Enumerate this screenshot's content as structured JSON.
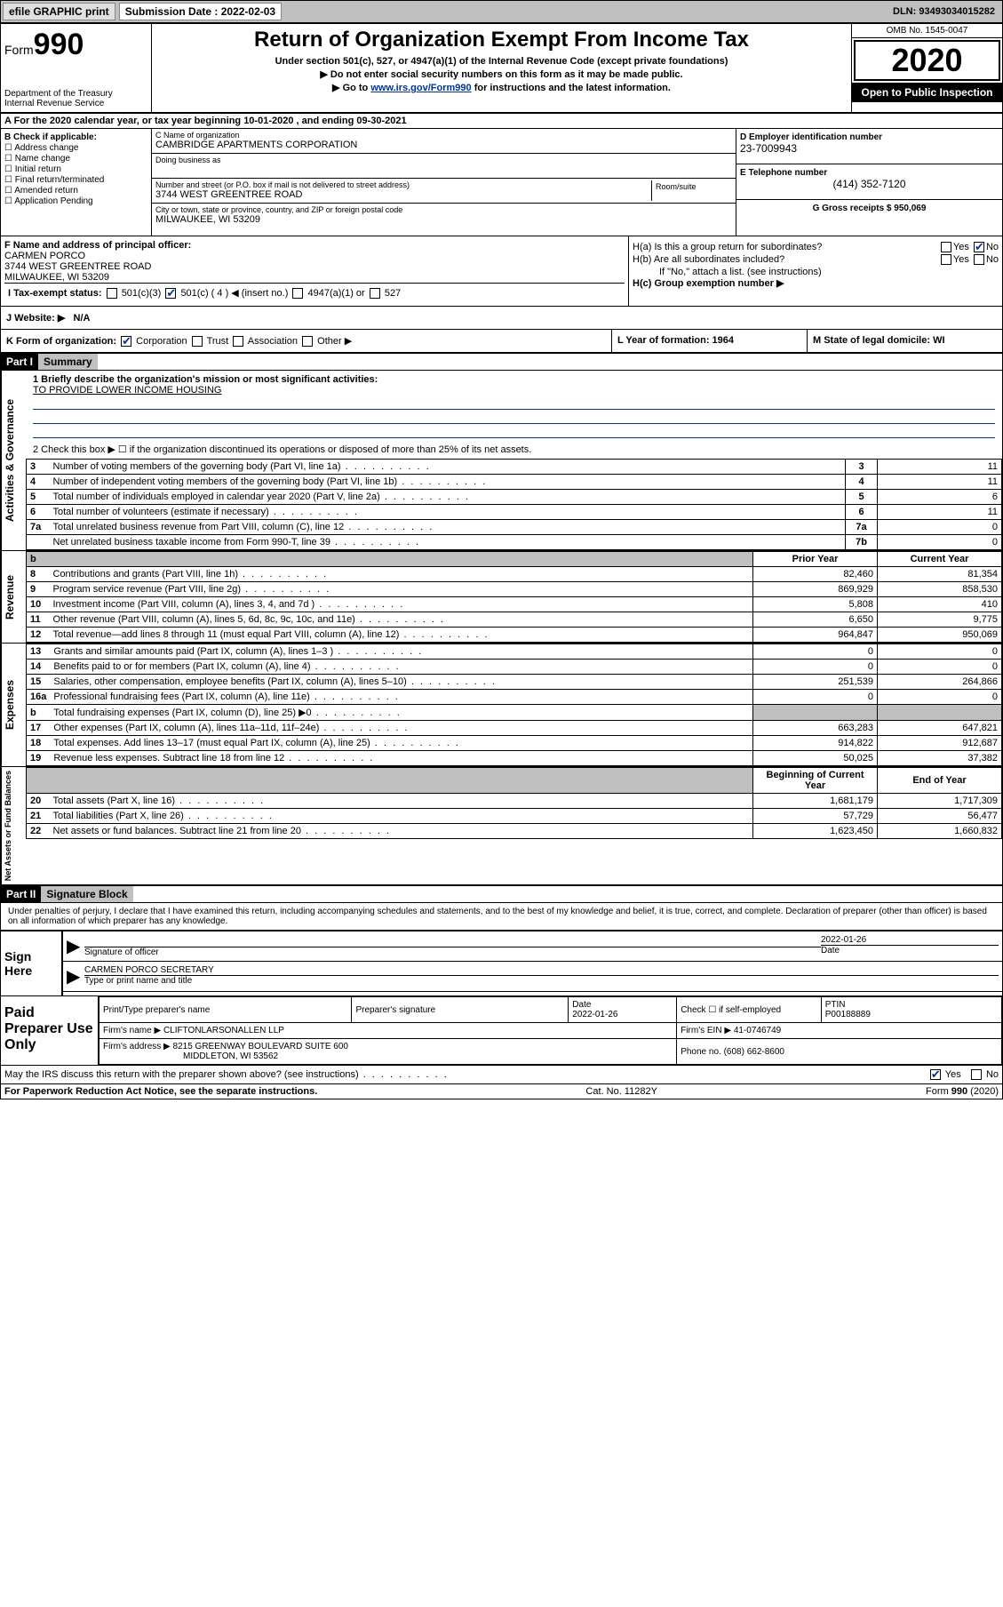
{
  "topbar": {
    "efile": "efile GRAPHIC print",
    "submission_label": "Submission Date : 2022-02-03",
    "dln": "DLN: 93493034015282"
  },
  "header": {
    "form_word": "Form",
    "form_num": "990",
    "dept": "Department of the Treasury",
    "irs": "Internal Revenue Service",
    "title": "Return of Organization Exempt From Income Tax",
    "sub1": "Under section 501(c), 527, or 4947(a)(1) of the Internal Revenue Code (except private foundations)",
    "sub2": "▶ Do not enter social security numbers on this form as it may be made public.",
    "sub3_pre": "▶ Go to ",
    "sub3_link": "www.irs.gov/Form990",
    "sub3_post": " for instructions and the latest information.",
    "omb": "OMB No. 1545-0047",
    "year": "2020",
    "open": "Open to Public Inspection"
  },
  "row_a": "A For the 2020 calendar year, or tax year beginning 10-01-2020    , and ending 09-30-2021",
  "b": {
    "label": "B Check if applicable:",
    "items": [
      "Address change",
      "Name change",
      "Initial return",
      "Final return/terminated",
      "Amended return",
      "Application Pending"
    ]
  },
  "c": {
    "name_label": "C Name of organization",
    "name": "CAMBRIDGE APARTMENTS CORPORATION",
    "dba_label": "Doing business as",
    "dba": "",
    "addr_label": "Number and street (or P.O. box if mail is not delivered to street address)",
    "suite_label": "Room/suite",
    "addr": "3744 WEST GREENTREE ROAD",
    "city_label": "City or town, state or province, country, and ZIP or foreign postal code",
    "city": "MILWAUKEE, WI  53209"
  },
  "d": {
    "ein_label": "D Employer identification number",
    "ein": "23-7009943",
    "tel_label": "E Telephone number",
    "tel": "(414) 352-7120",
    "gross_label": "G Gross receipts $ 950,069"
  },
  "f": {
    "label": "F Name and address of principal officer:",
    "name": "CARMEN PORCO",
    "addr1": "3744 WEST GREENTREE ROAD",
    "addr2": "MILWAUKEE, WI  53209"
  },
  "h": {
    "a": "H(a)  Is this a group return for subordinates?",
    "a_ans_yes": "Yes",
    "a_ans_no": "No",
    "b": "H(b)  Are all subordinates included?",
    "b_note": "If \"No,\" attach a list. (see instructions)",
    "c": "H(c)  Group exemption number ▶"
  },
  "i": {
    "label": "I  Tax-exempt status:",
    "opts": [
      "501(c)(3)",
      "501(c) ( 4 ) ◀ (insert no.)",
      "4947(a)(1) or",
      "527"
    ]
  },
  "j": {
    "label": "J  Website: ▶",
    "val": "N/A"
  },
  "k": {
    "label": "K Form of organization:",
    "opts": [
      "Corporation",
      "Trust",
      "Association",
      "Other ▶"
    ]
  },
  "l": {
    "label": "L Year of formation: 1964"
  },
  "m": {
    "label": "M State of legal domicile: WI"
  },
  "part1": {
    "hdr": "Part I",
    "title": "Summary",
    "q1_label": "1  Briefly describe the organization's mission or most significant activities:",
    "q1_val": "TO PROVIDE LOWER INCOME HOUSING",
    "q2": "2   Check this box ▶ ☐  if the organization discontinued its operations or disposed of more than 25% of its net assets.",
    "rows_gov": [
      {
        "n": "3",
        "d": "Number of voting members of the governing body (Part VI, line 1a)",
        "box": "3",
        "v": "11"
      },
      {
        "n": "4",
        "d": "Number of independent voting members of the governing body (Part VI, line 1b)",
        "box": "4",
        "v": "11"
      },
      {
        "n": "5",
        "d": "Total number of individuals employed in calendar year 2020 (Part V, line 2a)",
        "box": "5",
        "v": "6"
      },
      {
        "n": "6",
        "d": "Total number of volunteers (estimate if necessary)",
        "box": "6",
        "v": "11"
      },
      {
        "n": "7a",
        "d": "Total unrelated business revenue from Part VIII, column (C), line 12",
        "box": "7a",
        "v": "0"
      },
      {
        "n": "",
        "d": "Net unrelated business taxable income from Form 990-T, line 39",
        "box": "7b",
        "v": "0"
      }
    ],
    "py_hdr": "Prior Year",
    "cy_hdr": "Current Year",
    "rows_rev": [
      {
        "n": "8",
        "d": "Contributions and grants (Part VIII, line 1h)",
        "py": "82,460",
        "cy": "81,354"
      },
      {
        "n": "9",
        "d": "Program service revenue (Part VIII, line 2g)",
        "py": "869,929",
        "cy": "858,530"
      },
      {
        "n": "10",
        "d": "Investment income (Part VIII, column (A), lines 3, 4, and 7d )",
        "py": "5,808",
        "cy": "410"
      },
      {
        "n": "11",
        "d": "Other revenue (Part VIII, column (A), lines 5, 6d, 8c, 9c, 10c, and 11e)",
        "py": "6,650",
        "cy": "9,775"
      },
      {
        "n": "12",
        "d": "Total revenue—add lines 8 through 11 (must equal Part VIII, column (A), line 12)",
        "py": "964,847",
        "cy": "950,069"
      }
    ],
    "rows_exp": [
      {
        "n": "13",
        "d": "Grants and similar amounts paid (Part IX, column (A), lines 1–3 )",
        "py": "0",
        "cy": "0"
      },
      {
        "n": "14",
        "d": "Benefits paid to or for members (Part IX, column (A), line 4)",
        "py": "0",
        "cy": "0"
      },
      {
        "n": "15",
        "d": "Salaries, other compensation, employee benefits (Part IX, column (A), lines 5–10)",
        "py": "251,539",
        "cy": "264,866"
      },
      {
        "n": "16a",
        "d": "Professional fundraising fees (Part IX, column (A), line 11e)",
        "py": "0",
        "cy": "0"
      },
      {
        "n": "b",
        "d": "Total fundraising expenses (Part IX, column (D), line 25) ▶0",
        "py": "",
        "cy": "",
        "grey": true
      },
      {
        "n": "17",
        "d": "Other expenses (Part IX, column (A), lines 11a–11d, 11f–24e)",
        "py": "663,283",
        "cy": "647,821"
      },
      {
        "n": "18",
        "d": "Total expenses. Add lines 13–17 (must equal Part IX, column (A), line 25)",
        "py": "914,822",
        "cy": "912,687"
      },
      {
        "n": "19",
        "d": "Revenue less expenses. Subtract line 18 from line 12",
        "py": "50,025",
        "cy": "37,382"
      }
    ],
    "boy_hdr": "Beginning of Current Year",
    "eoy_hdr": "End of Year",
    "rows_net": [
      {
        "n": "20",
        "d": "Total assets (Part X, line 16)",
        "py": "1,681,179",
        "cy": "1,717,309"
      },
      {
        "n": "21",
        "d": "Total liabilities (Part X, line 26)",
        "py": "57,729",
        "cy": "56,477"
      },
      {
        "n": "22",
        "d": "Net assets or fund balances. Subtract line 21 from line 20",
        "py": "1,623,450",
        "cy": "1,660,832"
      }
    ],
    "tab_gov": "Activities & Governance",
    "tab_rev": "Revenue",
    "tab_exp": "Expenses",
    "tab_net": "Net Assets or Fund Balances"
  },
  "part2": {
    "hdr": "Part II",
    "title": "Signature Block",
    "penalty": "Under penalties of perjury, I declare that I have examined this return, including accompanying schedules and statements, and to the best of my knowledge and belief, it is true, correct, and complete. Declaration of preparer (other than officer) is based on all information of which preparer has any knowledge.",
    "sign_here": "Sign Here",
    "sig_officer_lbl": "Signature of officer",
    "sig_date": "2022-01-26",
    "date_lbl": "Date",
    "officer_name": "CARMEN PORCO  SECRETARY",
    "name_title_lbl": "Type or print name and title",
    "paid_prep": "Paid Preparer Use Only",
    "prep_name_lbl": "Print/Type preparer's name",
    "prep_sig_lbl": "Preparer's signature",
    "prep_date_lbl": "Date",
    "prep_date": "2022-01-26",
    "self_emp": "Check ☐ if self-employed",
    "ptin_lbl": "PTIN",
    "ptin": "P00188889",
    "firm_name_lbl": "Firm's name    ▶",
    "firm_name": "CLIFTONLARSONALLEN LLP",
    "firm_ein_lbl": "Firm's EIN ▶",
    "firm_ein": "41-0746749",
    "firm_addr_lbl": "Firm's address ▶",
    "firm_addr1": "8215 GREENWAY BOULEVARD SUITE 600",
    "firm_addr2": "MIDDLETON, WI  53562",
    "phone_lbl": "Phone no.",
    "phone": "(608) 662-8600",
    "discuss": "May the IRS discuss this return with the preparer shown above? (see instructions)",
    "yes": "Yes",
    "no": "No"
  },
  "footer": {
    "left": "For Paperwork Reduction Act Notice, see the separate instructions.",
    "mid": "Cat. No. 11282Y",
    "right": "Form 990 (2020)"
  }
}
